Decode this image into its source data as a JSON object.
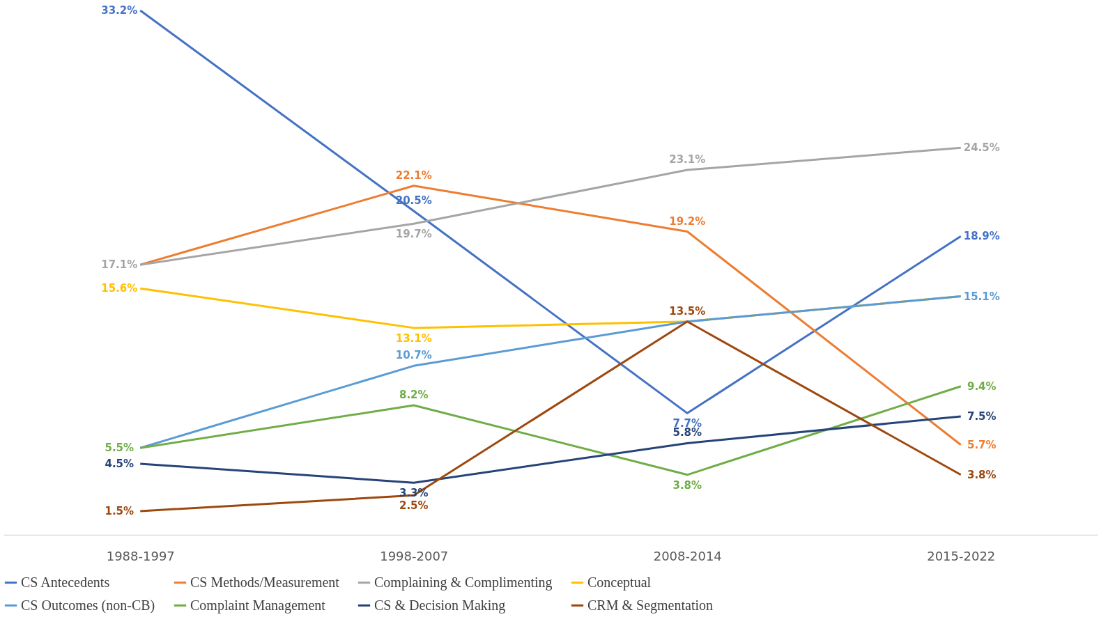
{
  "chart_data": {
    "type": "line",
    "categories": [
      "1988-1997",
      "1998-2007",
      "2008-2014",
      "2015-2022"
    ],
    "legend": "bottom",
    "grid": false,
    "marker": "none",
    "series": [
      {
        "name": "CS Antecedents",
        "color": "#4472c4",
        "values": [
          33.2,
          20.5,
          7.7,
          18.9
        ],
        "value_labels": [
          "33.2%",
          "20.5%",
          "7.7%",
          "18.9%"
        ]
      },
      {
        "name": "CS Methods/Measurement",
        "color": "#ed7d31",
        "values": [
          17.1,
          22.1,
          19.2,
          5.7
        ],
        "value_labels": [
          null,
          "22.1%",
          "19.2%",
          "5.7%"
        ]
      },
      {
        "name": "Complaining & Complimenting",
        "color": "#a5a5a5",
        "values": [
          17.1,
          19.7,
          23.1,
          24.5
        ],
        "value_labels": [
          "17.1%",
          "19.7%",
          "23.1%",
          "24.5%"
        ]
      },
      {
        "name": "Conceptual",
        "color": "#ffc000",
        "values": [
          15.6,
          13.1,
          13.5,
          15.1
        ],
        "value_labels": [
          "15.6%",
          "13.1%",
          null,
          null
        ]
      },
      {
        "name": "CS Outcomes (non-CB)",
        "color": "#5b9bd5",
        "values": [
          5.5,
          10.7,
          13.5,
          15.1
        ],
        "value_labels": [
          null,
          "10.7%",
          null,
          "15.1%"
        ]
      },
      {
        "name": "Complaint Management",
        "color": "#70ad47",
        "values": [
          5.5,
          8.2,
          3.8,
          9.4
        ],
        "value_labels": [
          "5.5%",
          "8.2%",
          "3.8%",
          "9.4%"
        ]
      },
      {
        "name": "CS & Decision Making",
        "color": "#264478",
        "values": [
          4.5,
          3.3,
          5.8,
          7.5
        ],
        "value_labels": [
          "4.5%",
          "3.3%",
          "5.8%",
          "7.5%"
        ]
      },
      {
        "name": "CRM & Segmentation",
        "color": "#9e480e",
        "values": [
          1.5,
          2.5,
          13.5,
          3.8
        ],
        "value_labels": [
          "1.5%",
          "2.5%",
          "13.5%",
          "3.8%"
        ]
      }
    ]
  }
}
